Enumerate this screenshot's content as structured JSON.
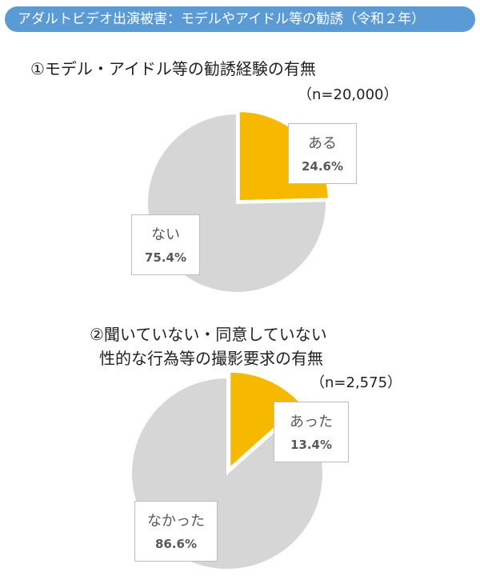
{
  "banner": {
    "text": "アダルトビデオ出演被害：モデルやアイドル等の勧誘（令和２年）"
  },
  "colors": {
    "highlight": "#f7b900",
    "rest": "#d6d6d6",
    "banner": "#5b9bd5"
  },
  "chart_data": [
    {
      "type": "pie",
      "title_lines": [
        "①モデル・アイドル等の勧誘経験の有無"
      ],
      "n_label": "（n=20,000）",
      "slices": [
        {
          "label": "ある",
          "value": 24.6,
          "value_text": "24.6%"
        },
        {
          "label": "ない",
          "value": 75.4,
          "value_text": "75.4%"
        }
      ]
    },
    {
      "type": "pie",
      "title_lines": [
        "②聞いていない・同意していない",
        "性的な行為等の撮影要求の有無"
      ],
      "n_label": "（n=2,575）",
      "slices": [
        {
          "label": "あった",
          "value": 13.4,
          "value_text": "13.4%"
        },
        {
          "label": "なかった",
          "value": 86.6,
          "value_text": "86.6%"
        }
      ]
    }
  ]
}
